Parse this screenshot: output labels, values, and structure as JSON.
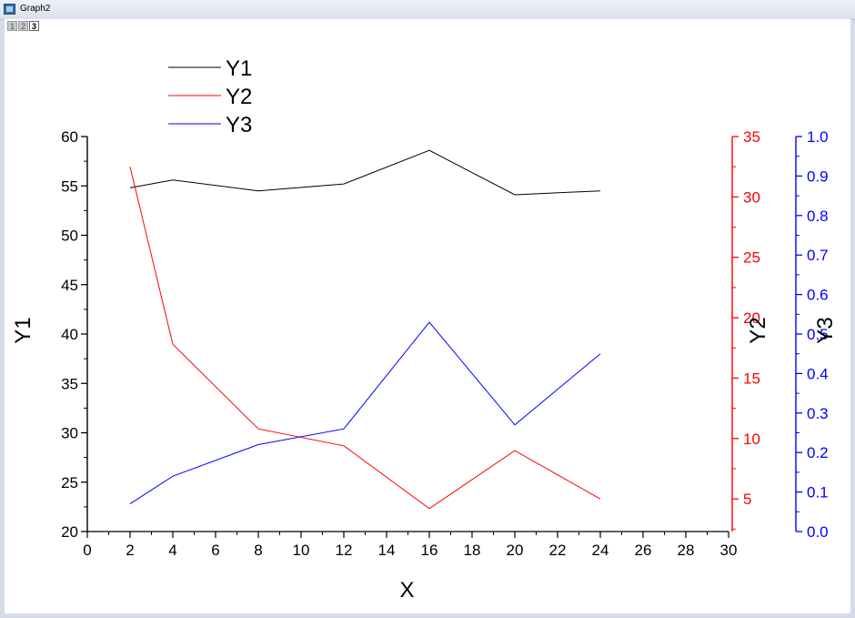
{
  "window": {
    "title": "Graph2"
  },
  "layer_tabs": [
    "1",
    "2",
    "3"
  ],
  "colors": {
    "y1": "#000000",
    "y2": "#ff0000",
    "y3": "#0000ff"
  },
  "chart_data": {
    "type": "line",
    "xlabel": "X",
    "xlim": [
      0,
      30
    ],
    "x_ticks": [
      0,
      2,
      4,
      6,
      8,
      10,
      12,
      14,
      16,
      18,
      20,
      22,
      24,
      26,
      28,
      30
    ],
    "legend_position": "top-left",
    "grid": false,
    "x": [
      2,
      4,
      8,
      12,
      16,
      20,
      24
    ],
    "axes": [
      {
        "id": "y1",
        "label": "Y1",
        "side": "left",
        "ylim": [
          20,
          60
        ],
        "ticks": [
          20,
          25,
          30,
          35,
          40,
          45,
          50,
          55,
          60
        ],
        "color": "#000000"
      },
      {
        "id": "y2",
        "label": "Y2",
        "side": "right",
        "ylim": [
          2.3,
          35
        ],
        "ticks": [
          5,
          10,
          15,
          20,
          25,
          30,
          35
        ],
        "color": "#ff0000"
      },
      {
        "id": "y3",
        "label": "Y3",
        "side": "right-outer",
        "ylim": [
          0,
          1
        ],
        "ticks": [
          "0.0",
          "0.1",
          "0.2",
          "0.3",
          "0.4",
          "0.5",
          "0.6",
          "0.7",
          "0.8",
          "0.9",
          "1.0"
        ],
        "color": "#0000ff"
      }
    ],
    "series": [
      {
        "name": "Y1",
        "axis": "y1",
        "color": "#000000",
        "values": [
          54.8,
          55.6,
          54.5,
          55.2,
          58.6,
          54.1,
          54.5
        ]
      },
      {
        "name": "Y2",
        "axis": "y2",
        "color": "#ff0000",
        "values": [
          32.5,
          17.8,
          10.8,
          9.4,
          4.2,
          9.0,
          5.0
        ]
      },
      {
        "name": "Y3",
        "axis": "y3",
        "color": "#0000ff",
        "values": [
          0.07,
          0.14,
          0.22,
          0.26,
          0.53,
          0.27,
          0.45
        ]
      }
    ]
  }
}
